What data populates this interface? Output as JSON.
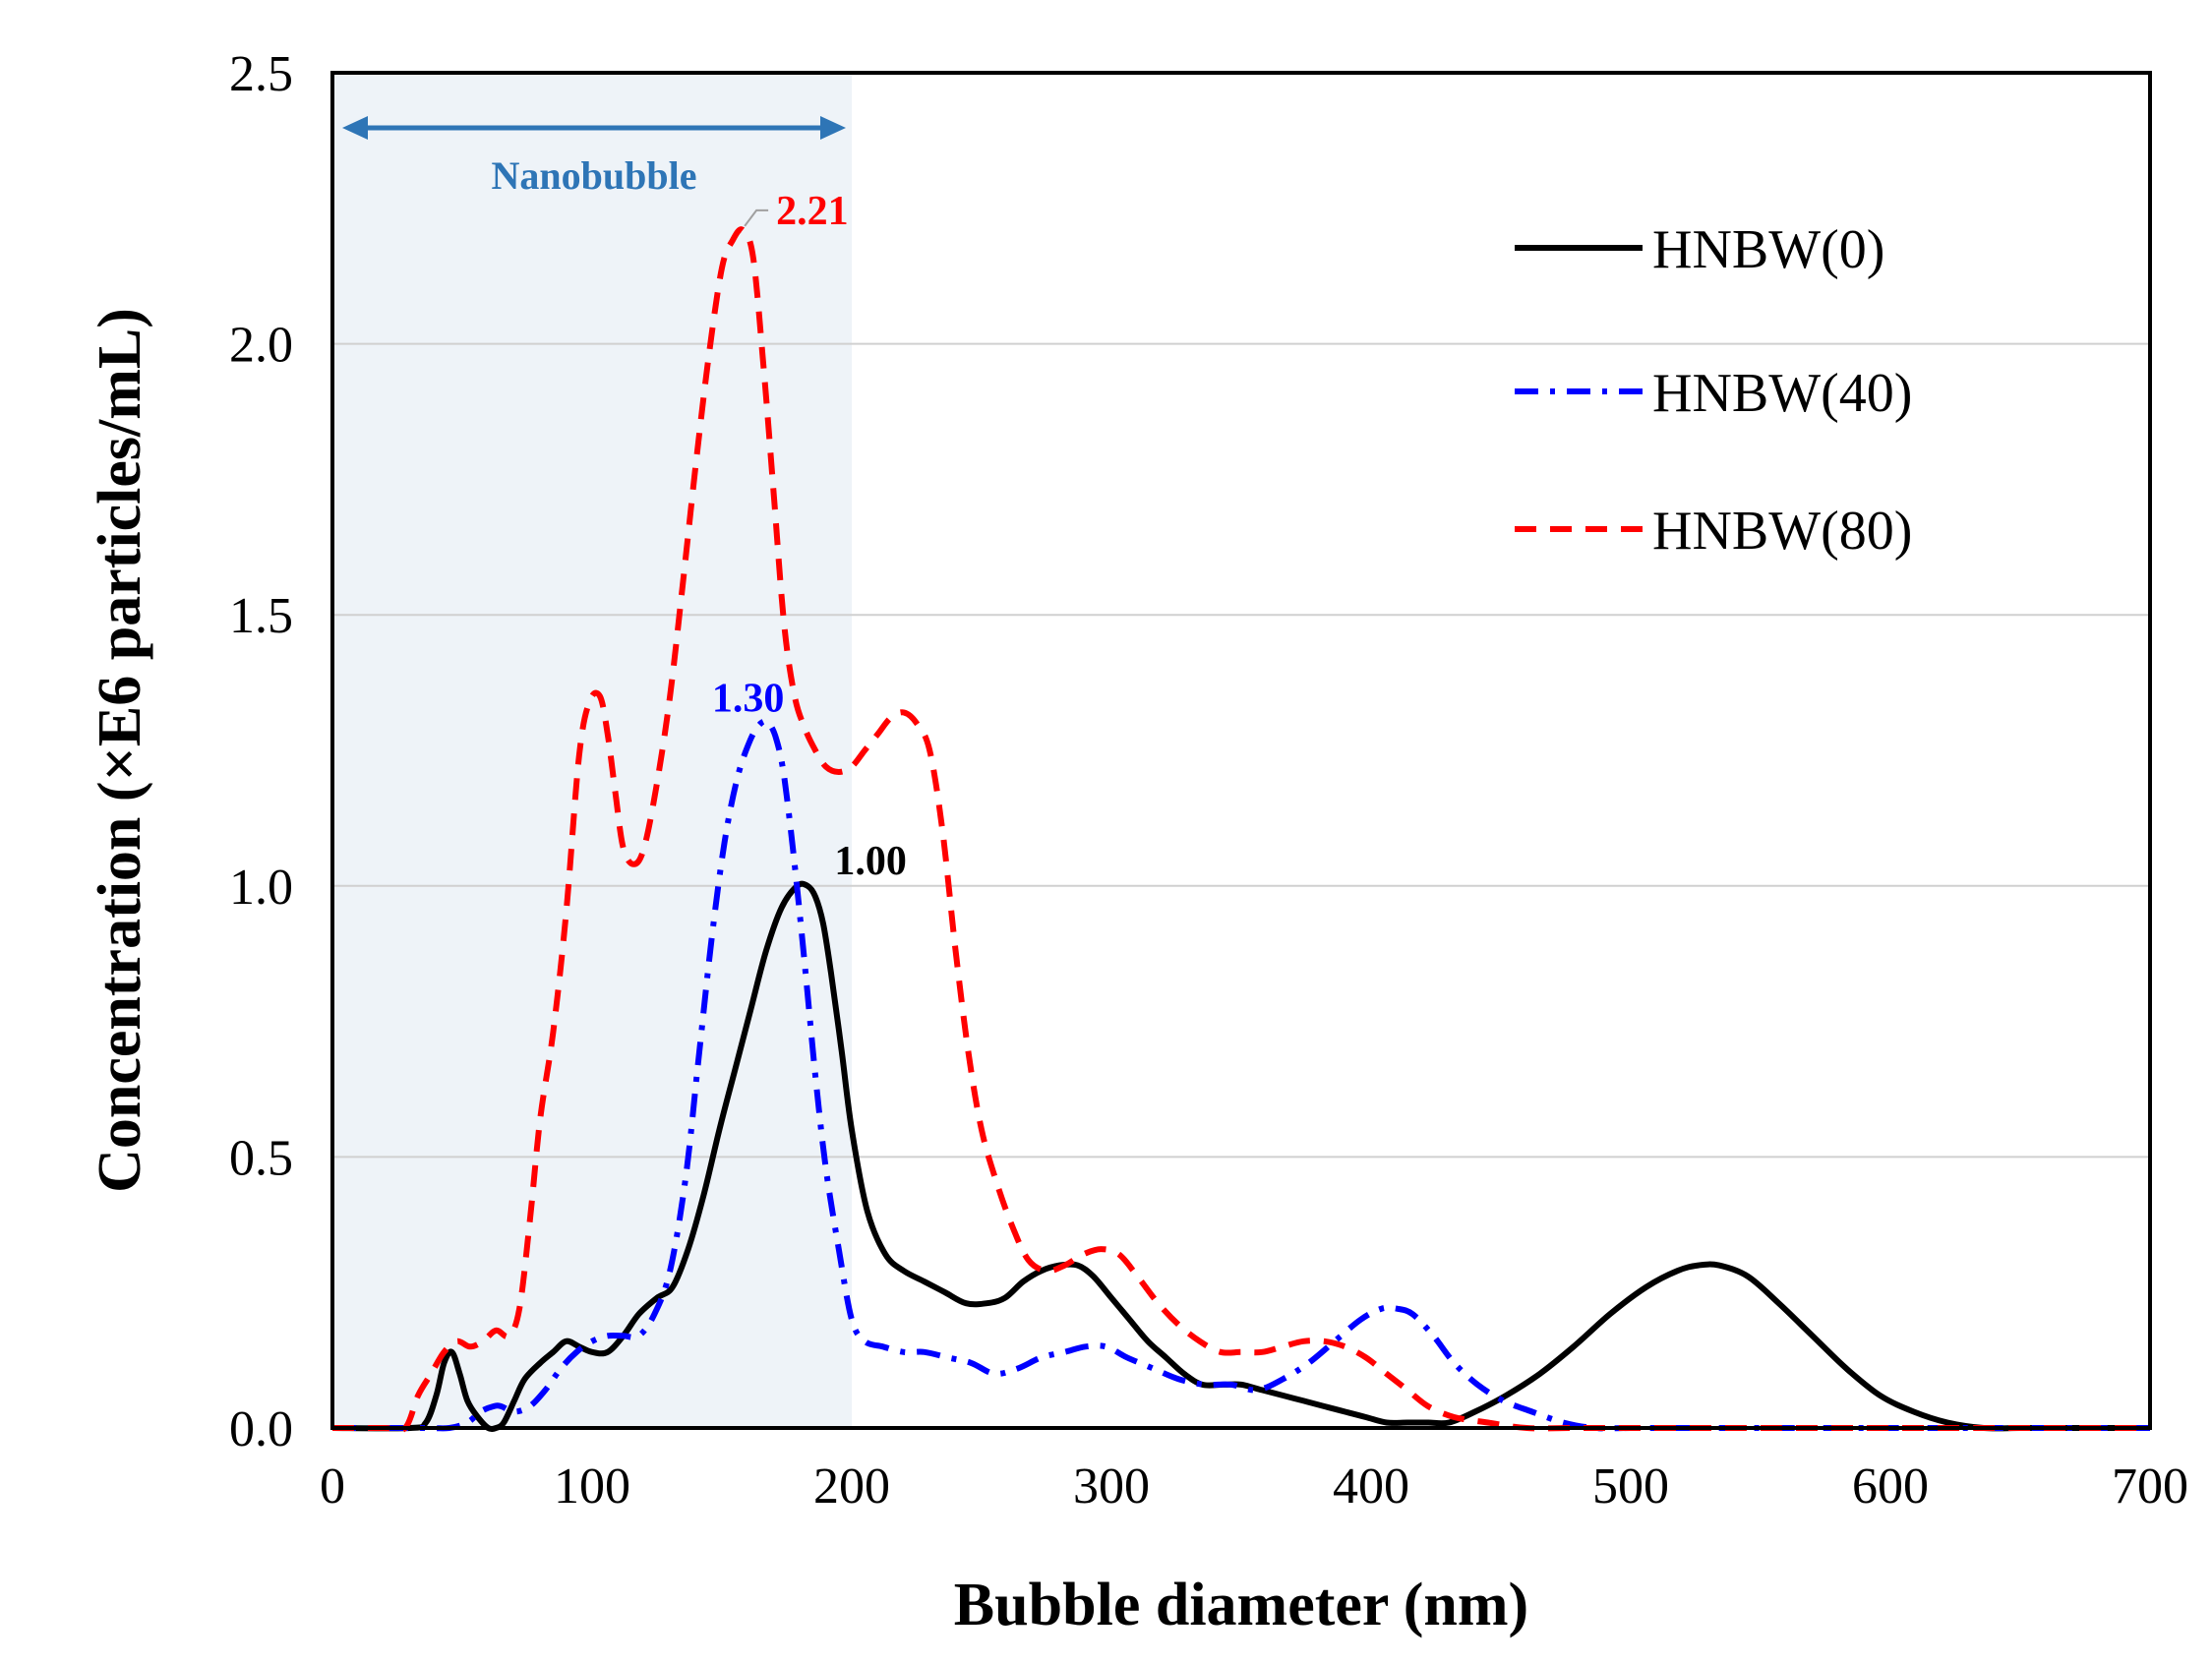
{
  "chart_data": {
    "type": "line",
    "title": "",
    "xlabel": "Bubble diameter (nm)",
    "ylabel": "Concentration (×E6 particles/mL)",
    "xlim": [
      0,
      700
    ],
    "ylim": [
      0,
      2.5
    ],
    "xticks": [
      "0",
      "100",
      "200",
      "300",
      "400",
      "500",
      "600",
      "700"
    ],
    "yticks": [
      "0.0",
      "0.5",
      "1.0",
      "1.5",
      "2.0",
      "2.5"
    ],
    "grid": "horizontal",
    "legend_position": "top-right",
    "region": {
      "label": "Nanobubble",
      "x_range": [
        0,
        200
      ],
      "color": "#eef3f8",
      "arrow_color": "#2e75b6"
    },
    "series": [
      {
        "name": "HNBW(0)",
        "color": "#000000",
        "style": "solid",
        "x": [
          0,
          30,
          36,
          40,
          43,
          46,
          49,
          52,
          56,
          60,
          63,
          66,
          70,
          74,
          80,
          85,
          90,
          95,
          100,
          106,
          112,
          118,
          125,
          131,
          137,
          143,
          149,
          155,
          161,
          167,
          173,
          179,
          183,
          186,
          189,
          192,
          196,
          200,
          206,
          213,
          220,
          228,
          236,
          244,
          252,
          259,
          266,
          273,
          280,
          287,
          293,
          300,
          307,
          314,
          321,
          328,
          335,
          343,
          350,
          358,
          366,
          374,
          382,
          390,
          398,
          406,
          414,
          422,
          430,
          440,
          452,
          465,
          478,
          492,
          506,
          518,
          526,
          534,
          545,
          557,
          570,
          583,
          596,
          609,
          622,
          636,
          650,
          665,
          680,
          700
        ],
        "y": [
          0.0,
          0.0,
          0.01,
          0.06,
          0.12,
          0.14,
          0.1,
          0.05,
          0.02,
          0.0,
          0.0,
          0.01,
          0.05,
          0.09,
          0.12,
          0.14,
          0.16,
          0.15,
          0.14,
          0.14,
          0.17,
          0.21,
          0.24,
          0.26,
          0.33,
          0.43,
          0.55,
          0.66,
          0.77,
          0.88,
          0.96,
          1.0,
          1.0,
          0.98,
          0.93,
          0.84,
          0.7,
          0.55,
          0.4,
          0.32,
          0.29,
          0.27,
          0.25,
          0.23,
          0.23,
          0.24,
          0.27,
          0.29,
          0.3,
          0.3,
          0.28,
          0.24,
          0.2,
          0.16,
          0.13,
          0.1,
          0.08,
          0.08,
          0.08,
          0.07,
          0.06,
          0.05,
          0.04,
          0.03,
          0.02,
          0.01,
          0.01,
          0.01,
          0.01,
          0.03,
          0.06,
          0.1,
          0.15,
          0.21,
          0.26,
          0.29,
          0.3,
          0.3,
          0.28,
          0.23,
          0.17,
          0.11,
          0.06,
          0.03,
          0.01,
          0.0,
          0.0,
          0.0,
          0.0,
          0.0
        ]
      },
      {
        "name": "HNBW(40)",
        "color": "#0000ff",
        "style": "dash-dot",
        "x": [
          0,
          35,
          45,
          52,
          57,
          62,
          65,
          70,
          76,
          82,
          88,
          94,
          100,
          106,
          112,
          118,
          124,
          130,
          136,
          141,
          146,
          151,
          156,
          161,
          165,
          168,
          171,
          174,
          178,
          182,
          186,
          190,
          195,
          200,
          205,
          212,
          220,
          228,
          237,
          246,
          255,
          264,
          273,
          282,
          290,
          298,
          306,
          316,
          326,
          336,
          346,
          356,
          366,
          376,
          386,
          396,
          404,
          410,
          416,
          424,
          432,
          441,
          451,
          462,
          474,
          486,
          500,
          520,
          560,
          700
        ],
        "y": [
          0.0,
          0.0,
          0.0,
          0.01,
          0.03,
          0.04,
          0.04,
          0.03,
          0.04,
          0.07,
          0.11,
          0.14,
          0.16,
          0.17,
          0.17,
          0.17,
          0.21,
          0.29,
          0.46,
          0.68,
          0.9,
          1.08,
          1.2,
          1.27,
          1.3,
          1.3,
          1.27,
          1.2,
          1.04,
          0.85,
          0.65,
          0.48,
          0.33,
          0.2,
          0.16,
          0.15,
          0.14,
          0.14,
          0.13,
          0.12,
          0.1,
          0.11,
          0.13,
          0.14,
          0.15,
          0.15,
          0.13,
          0.11,
          0.09,
          0.08,
          0.08,
          0.07,
          0.09,
          0.12,
          0.16,
          0.2,
          0.22,
          0.22,
          0.21,
          0.17,
          0.12,
          0.08,
          0.05,
          0.03,
          0.01,
          0.0,
          0.0,
          0.0,
          0.0,
          0.0
        ]
      },
      {
        "name": "HNBW(80)",
        "color": "#ff0000",
        "style": "dashed",
        "x": [
          0,
          20,
          28,
          33,
          38,
          43,
          48,
          53,
          58,
          63,
          68,
          72,
          76,
          80,
          85,
          90,
          95,
          99,
          103,
          106,
          109,
          112,
          116,
          120,
          125,
          130,
          135,
          140,
          145,
          150,
          154,
          158,
          162,
          166,
          170,
          174,
          178,
          182,
          186,
          190,
          195,
          200,
          205,
          210,
          215,
          220,
          225,
          230,
          235,
          240,
          245,
          250,
          256,
          262,
          268,
          275,
          282,
          289,
          296,
          303,
          310,
          318,
          326,
          334,
          342,
          350,
          358,
          366,
          374,
          382,
          390,
          398,
          406,
          414,
          422,
          432,
          445,
          460,
          480,
          520,
          700
        ],
        "y": [
          0.0,
          0.0,
          0.0,
          0.06,
          0.1,
          0.14,
          0.16,
          0.15,
          0.16,
          0.18,
          0.17,
          0.22,
          0.38,
          0.57,
          0.73,
          0.95,
          1.24,
          1.34,
          1.35,
          1.28,
          1.17,
          1.07,
          1.04,
          1.07,
          1.19,
          1.35,
          1.56,
          1.78,
          1.98,
          2.14,
          2.19,
          2.21,
          2.16,
          1.96,
          1.72,
          1.48,
          1.35,
          1.29,
          1.25,
          1.22,
          1.21,
          1.22,
          1.25,
          1.28,
          1.31,
          1.32,
          1.3,
          1.25,
          1.1,
          0.88,
          0.69,
          0.55,
          0.45,
          0.37,
          0.31,
          0.29,
          0.3,
          0.32,
          0.33,
          0.32,
          0.28,
          0.23,
          0.19,
          0.16,
          0.14,
          0.14,
          0.14,
          0.15,
          0.16,
          0.16,
          0.15,
          0.13,
          0.1,
          0.07,
          0.04,
          0.02,
          0.01,
          0.0,
          0.0,
          0.0,
          0.0
        ]
      }
    ],
    "annotations": [
      {
        "text": "2.21",
        "series": "HNBW(80)",
        "x": 158,
        "y": 2.21,
        "color": "#ff0000"
      },
      {
        "text": "1.30",
        "series": "HNBW(40)",
        "x": 167,
        "y": 1.3,
        "color": "#0000ff"
      },
      {
        "text": "1.00",
        "series": "HNBW(0)",
        "x": 185,
        "y": 1.0,
        "color": "#000000"
      }
    ]
  }
}
